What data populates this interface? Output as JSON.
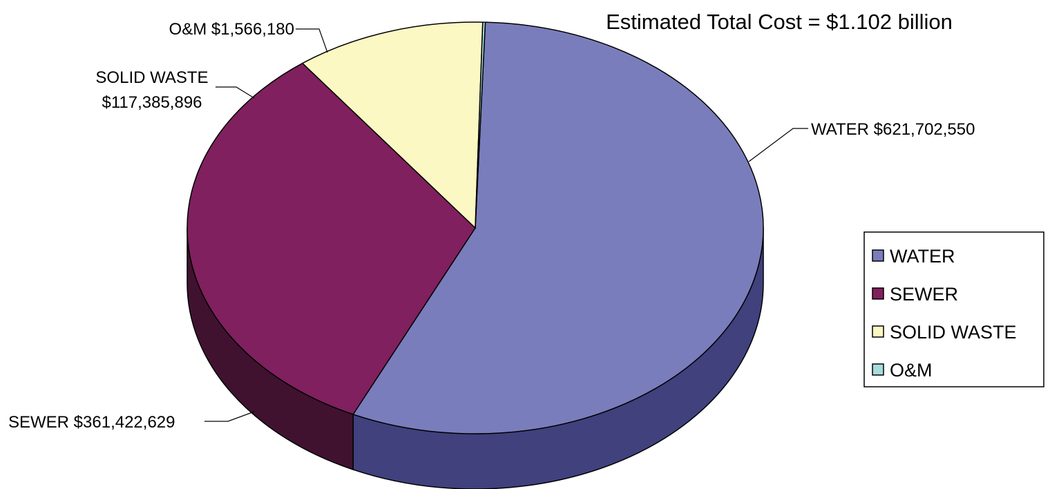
{
  "chart_data": {
    "type": "pie",
    "style": "3d",
    "title": "Estimated Total Cost = $1.102 billion",
    "slices": [
      {
        "name": "WATER",
        "value": 621702550,
        "label": "WATER $621,702,550",
        "color": "#7a7dbb",
        "side_color": "#40417d"
      },
      {
        "name": "SEWER",
        "value": 361422629,
        "label": "SEWER $361,422,629",
        "color": "#80205e",
        "side_color": "#40122f"
      },
      {
        "name": "SOLID WASTE",
        "value": 117385896,
        "label_line1": "SOLID WASTE",
        "label_line2": "$117,385,896",
        "color": "#fbf8c3",
        "side_color": "#8a8869"
      },
      {
        "name": "O&M",
        "value": 1566180,
        "label": "O&M $1,566,180",
        "color": "#a6dcdc",
        "side_color": "#5b7a7a"
      }
    ],
    "legend": {
      "placement": "right",
      "entries": [
        "WATER",
        "SEWER",
        "SOLID WASTE",
        "O&M"
      ]
    }
  }
}
